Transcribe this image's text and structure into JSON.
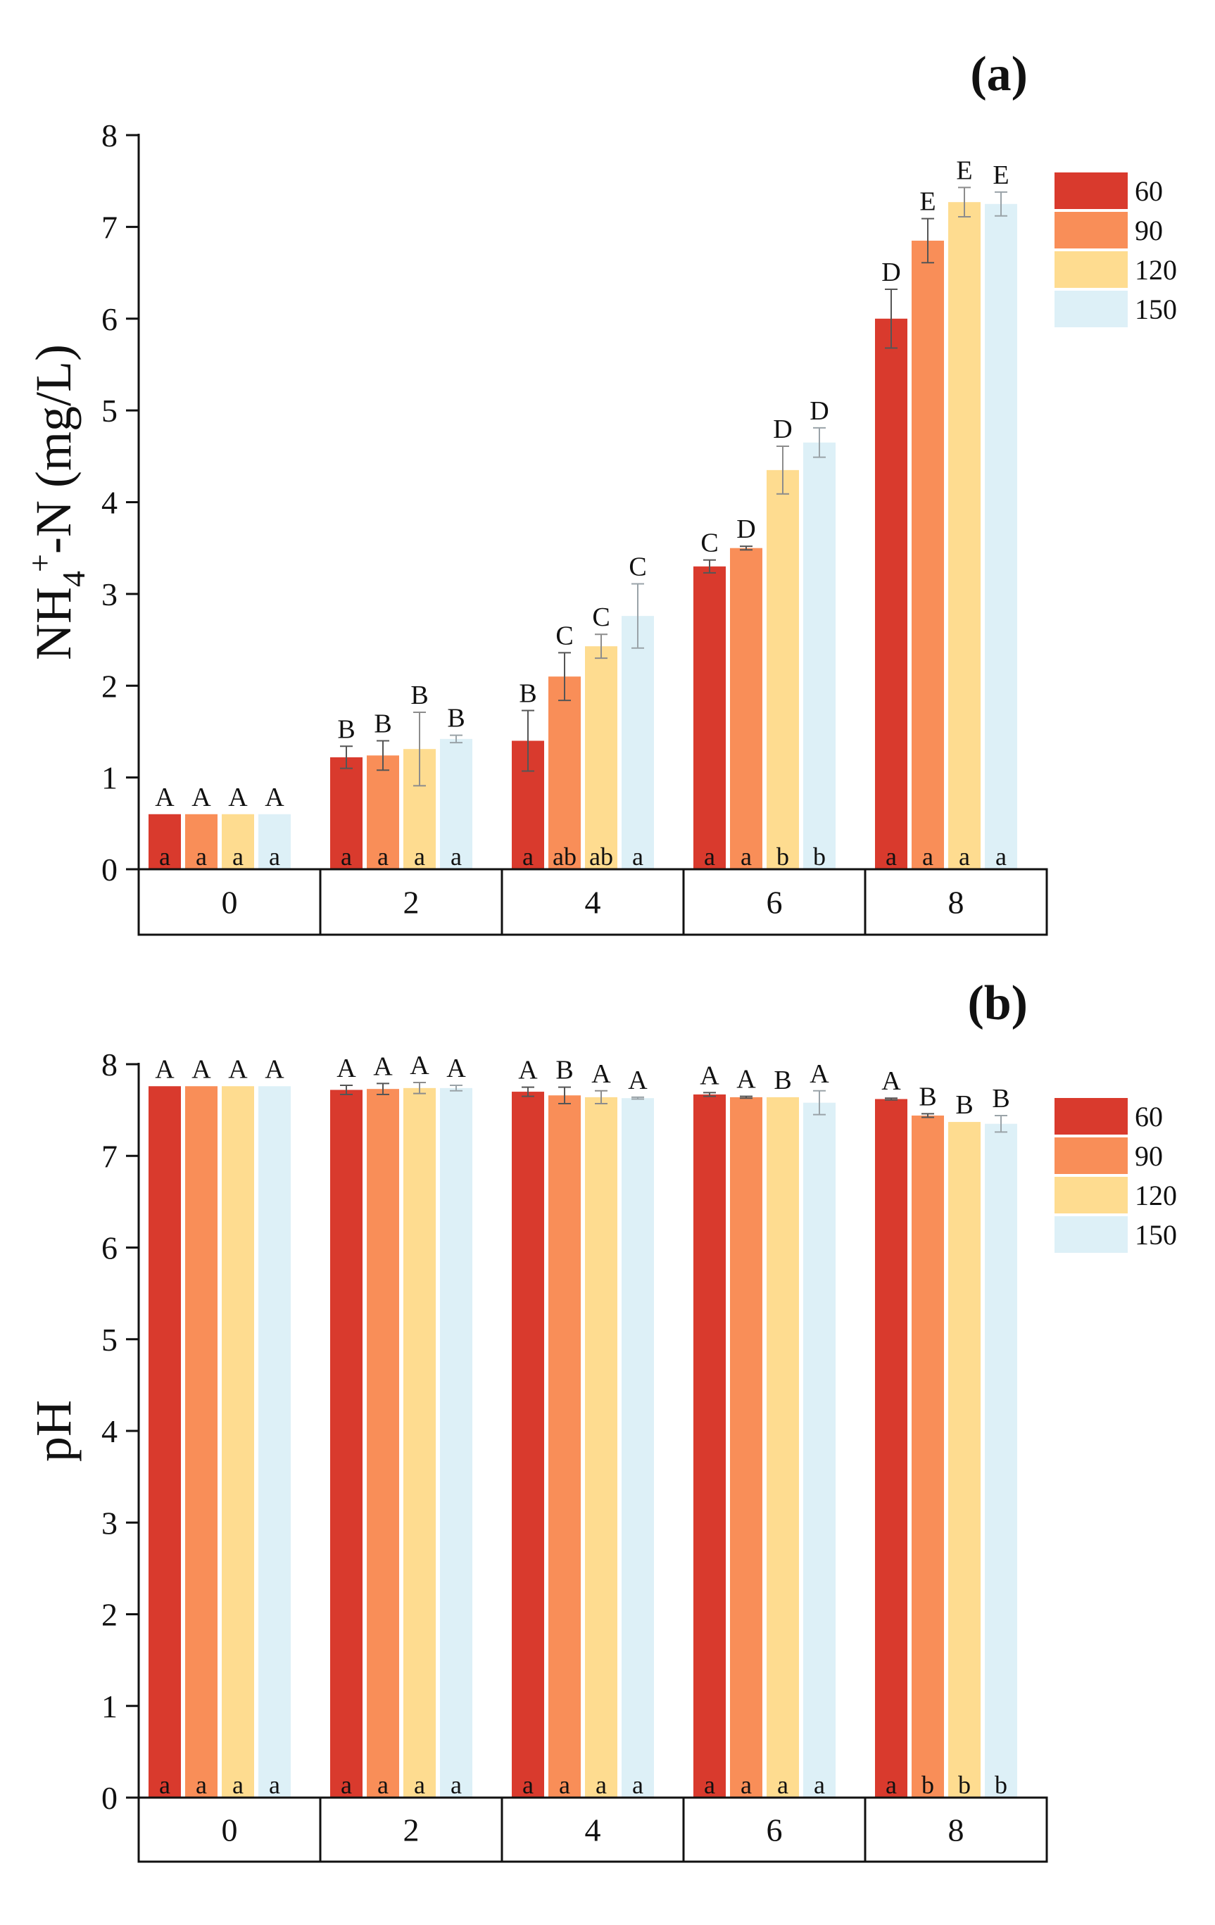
{
  "colors": {
    "60": "#d93a2d",
    "90": "#f98e58",
    "120": "#fedc90",
    "150": "#ddf0f7"
  },
  "chart_data": [
    {
      "type": "bar",
      "panel_label": "(a)",
      "ylabel": {
        "main": "NH",
        "sub": "4",
        "sup": "+",
        "rest": "-N (mg/L)"
      },
      "ylim": [
        0,
        8
      ],
      "yticks": [
        "0",
        "1",
        "2",
        "3",
        "4",
        "5",
        "6",
        "7",
        "8"
      ],
      "categories": [
        "0",
        "2",
        "4",
        "6",
        "8"
      ],
      "legend": [
        "60",
        "90",
        "120",
        "150"
      ],
      "series": [
        {
          "name": "60",
          "values": [
            0.6,
            1.22,
            1.4,
            3.3,
            6.0
          ],
          "errors": [
            0.0,
            0.12,
            0.33,
            0.07,
            0.32
          ]
        },
        {
          "name": "90",
          "values": [
            0.6,
            1.24,
            2.1,
            3.5,
            6.85
          ],
          "errors": [
            0.0,
            0.16,
            0.26,
            0.02,
            0.24
          ]
        },
        {
          "name": "120",
          "values": [
            0.6,
            1.31,
            2.43,
            4.35,
            7.27
          ],
          "errors": [
            0.0,
            0.4,
            0.13,
            0.26,
            0.16
          ]
        },
        {
          "name": "150",
          "values": [
            0.6,
            1.42,
            2.76,
            4.65,
            7.25
          ],
          "errors": [
            0.0,
            0.04,
            0.35,
            0.16,
            0.13
          ]
        }
      ],
      "upper_letters": [
        [
          "A",
          "B",
          "B",
          "C",
          "D"
        ],
        [
          "A",
          "B",
          "C",
          "D",
          "E"
        ],
        [
          "A",
          "B",
          "C",
          "D",
          "E"
        ],
        [
          "A",
          "B",
          "C",
          "D",
          "E"
        ]
      ],
      "lower_letters": [
        [
          "a",
          "a",
          "a",
          "a",
          "a"
        ],
        [
          "a",
          "a",
          "ab",
          "a",
          "a"
        ],
        [
          "a",
          "a",
          "ab",
          "b",
          "a"
        ],
        [
          "a",
          "a",
          "a",
          "b",
          "a"
        ]
      ]
    },
    {
      "type": "bar",
      "panel_label": "(b)",
      "ylabel": {
        "main": "pH",
        "sub": "",
        "sup": "",
        "rest": ""
      },
      "ylim": [
        0,
        8
      ],
      "yticks": [
        "0",
        "1",
        "2",
        "3",
        "4",
        "5",
        "6",
        "7",
        "8"
      ],
      "categories": [
        "0",
        "2",
        "4",
        "6",
        "8"
      ],
      "legend": [
        "60",
        "90",
        "120",
        "150"
      ],
      "series": [
        {
          "name": "60",
          "values": [
            7.76,
            7.72,
            7.7,
            7.67,
            7.62
          ],
          "errors": [
            0.0,
            0.05,
            0.05,
            0.02,
            0.01
          ]
        },
        {
          "name": "90",
          "values": [
            7.76,
            7.73,
            7.66,
            7.64,
            7.44
          ],
          "errors": [
            0.0,
            0.06,
            0.09,
            0.01,
            0.02
          ]
        },
        {
          "name": "120",
          "values": [
            7.76,
            7.74,
            7.64,
            7.64,
            7.37
          ],
          "errors": [
            0.0,
            0.06,
            0.07,
            0.0,
            0.0
          ]
        },
        {
          "name": "150",
          "values": [
            7.76,
            7.74,
            7.63,
            7.58,
            7.35
          ],
          "errors": [
            0.0,
            0.03,
            0.01,
            0.13,
            0.09
          ]
        }
      ],
      "upper_letters": [
        [
          "A",
          "A",
          "A",
          "A",
          "A"
        ],
        [
          "A",
          "A",
          "B",
          "A",
          "B"
        ],
        [
          "A",
          "A",
          "A",
          "B",
          "B"
        ],
        [
          "A",
          "A",
          "A",
          "A",
          "B"
        ]
      ],
      "upper_letters_display": [
        [
          "A",
          "A",
          "A",
          "A",
          "A"
        ],
        [
          "A",
          "A",
          "B",
          "A",
          "B"
        ],
        [
          "A",
          "A",
          "A",
          "B",
          "B"
        ],
        [
          "A",
          "A",
          "A",
          "A",
          "B"
        ]
      ],
      "lower_letters": [
        [
          "a",
          "a",
          "a",
          "a",
          "a"
        ],
        [
          "a",
          "a",
          "a",
          "a",
          "b"
        ],
        [
          "a",
          "a",
          "a",
          "a",
          "b"
        ],
        [
          "a",
          "a",
          "a",
          "a",
          "b"
        ]
      ]
    }
  ]
}
